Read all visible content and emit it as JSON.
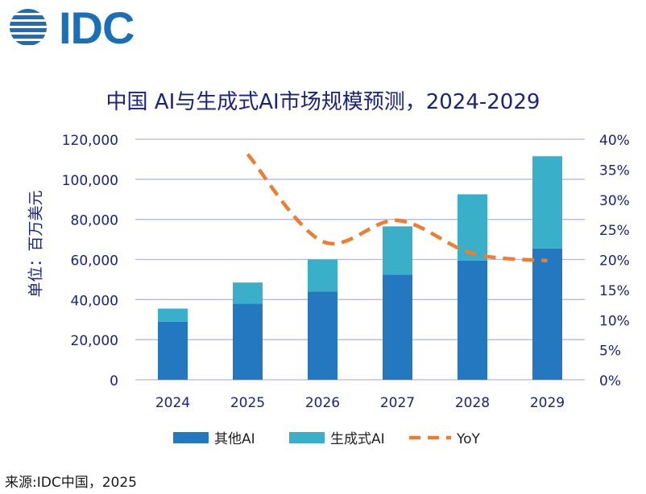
{
  "logo": {
    "text": "IDC"
  },
  "title": "中国 AI与生成式AI市场规模预测，2024-2029",
  "y_axis_label": "单位：百万美元",
  "source": "来源:IDC中国，2025",
  "colors": {
    "other_ai": "#2478bf",
    "gen_ai": "#3aafc9",
    "yoy": "#ee7d2f",
    "grid": "#b4b8dc",
    "axis_text": "#1a237e",
    "logo": "#1b6fb7"
  },
  "chart_data": {
    "type": "bar",
    "stacked": true,
    "categories": [
      "2024",
      "2025",
      "2026",
      "2027",
      "2028",
      "2029"
    ],
    "series": [
      {
        "name": "其他AI",
        "axis": "left",
        "values": [
          29000,
          38000,
          44000,
          52500,
          59500,
          65500
        ]
      },
      {
        "name": "生成式AI",
        "axis": "left",
        "values": [
          6500,
          10500,
          16000,
          24000,
          33000,
          46000
        ]
      },
      {
        "name": "YoY",
        "type": "line",
        "style": "dashed",
        "axis": "right",
        "values": [
          null,
          0.375,
          0.23,
          0.265,
          0.21,
          0.198
        ]
      }
    ],
    "ylim": [
      0,
      120000
    ],
    "y_ticks": [
      "0",
      "20,000",
      "40,000",
      "60,000",
      "80,000",
      "100,000",
      "120,000"
    ],
    "y2lim": [
      0,
      0.4
    ],
    "y2_ticks": [
      "0%",
      "5%",
      "10%",
      "15%",
      "20%",
      "25%",
      "30%",
      "35%",
      "40%"
    ],
    "ylabel": "单位：百万美元",
    "grid": true,
    "legend": "bottom-center"
  }
}
